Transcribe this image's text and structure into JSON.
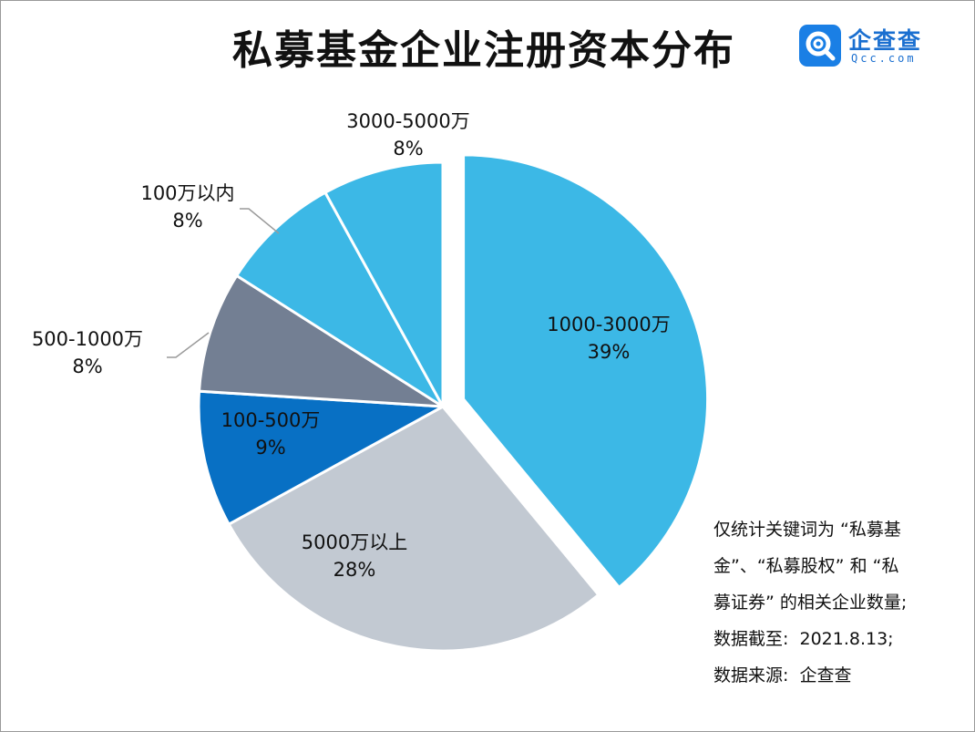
{
  "title": "私募基金企业注册资本分布",
  "logo": {
    "name": "企查查",
    "domain": "Qcc.com",
    "icon": "qcc-magnifier-icon",
    "color": "#1a7fe5"
  },
  "chart_data": {
    "type": "pie",
    "title": "私募基金企业注册资本分布",
    "slices": [
      {
        "label": "1000-3000万",
        "value": 39,
        "pct_label": "39%",
        "color": "#3cb8e6",
        "exploded": true
      },
      {
        "label": "5000万以上",
        "value": 28,
        "pct_label": "28%",
        "color": "#c2c9d2",
        "exploded": false
      },
      {
        "label": "100-500万",
        "value": 9,
        "pct_label": "9%",
        "color": "#0870c4",
        "exploded": false
      },
      {
        "label": "500-1000万",
        "value": 8,
        "pct_label": "8%",
        "color": "#737f93",
        "exploded": false
      },
      {
        "label": "100万以内",
        "value": 8,
        "pct_label": "8%",
        "color": "#3cb8e6",
        "exploded": false
      },
      {
        "label": "3000-5000万",
        "value": 8,
        "pct_label": "8%",
        "color": "#3cb8e6",
        "exploded": false
      }
    ],
    "start_angle_deg": 0,
    "direction": "clockwise",
    "legend": "none"
  },
  "note": {
    "lines": [
      "仅统计关键词为 “私募基",
      "金”、“私募股权” 和 “私",
      "募证券” 的相关企业数量;",
      "数据截至:  2021.8.13;",
      "数据来源:  企查查"
    ]
  }
}
